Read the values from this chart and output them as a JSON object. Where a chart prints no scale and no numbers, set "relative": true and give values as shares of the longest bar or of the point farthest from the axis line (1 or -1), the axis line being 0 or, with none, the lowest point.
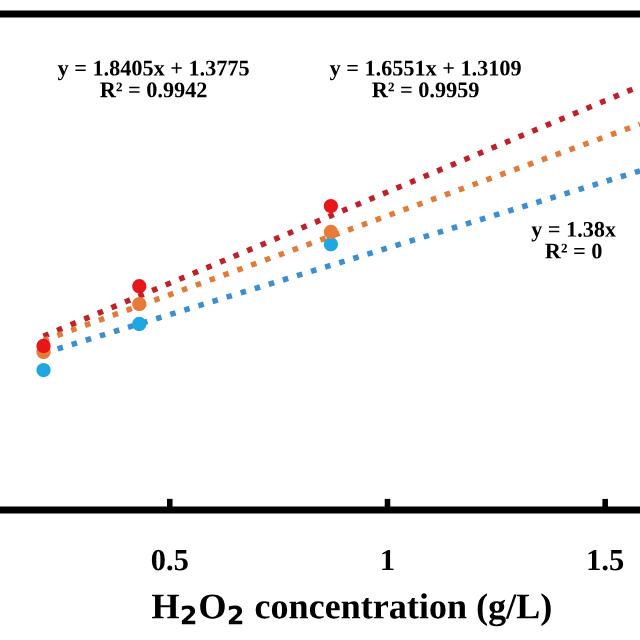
{
  "chart_data": {
    "type": "scatter",
    "relative": true,
    "xlabel": "H$_{2}$O$_{2}$ concentration (g/L)",
    "xlim": [
      0.11,
      1.58
    ],
    "xticks": [
      0.5,
      1,
      1.5
    ],
    "grid": false,
    "legend": false,
    "tick_labels": "x",
    "series": [
      {
        "marker": "circle",
        "color": "#e8161b",
        "x": [
          0.21,
          0.43,
          0.87
        ],
        "values": [
          0.387,
          0.528,
          0.717
        ]
      },
      {
        "marker": "circle",
        "color": "#e87a3a",
        "x": [
          0.21,
          0.43,
          0.87
        ],
        "values": [
          0.373,
          0.486,
          0.656
        ]
      },
      {
        "marker": "circle",
        "color": "#1ea7e0",
        "x": [
          0.21,
          0.43,
          0.87
        ],
        "values": [
          0.33,
          0.439,
          0.627
        ]
      },
      {
        "type": "line",
        "line_style": "dotted",
        "color": "#c0202a",
        "x": [
          0.21,
          1.58
        ],
        "values": [
          0.41,
          1.0
        ]
      },
      {
        "type": "line",
        "line_style": "dotted",
        "color": "#e07b39",
        "x": [
          0.21,
          1.58
        ],
        "values": [
          0.4,
          0.91
        ]
      },
      {
        "type": "line",
        "line_style": "dotted",
        "color": "#3b8fd0",
        "x": [
          0.21,
          1.58
        ],
        "values": [
          0.37,
          0.8
        ]
      }
    ],
    "annotations": [
      "y = 1.8405x + 1.3775\nR² = 0.9942",
      "y = 1.6551x + 1.3109\nR² = 0.9959",
      "y = 1.38x\nR² = 0"
    ]
  }
}
